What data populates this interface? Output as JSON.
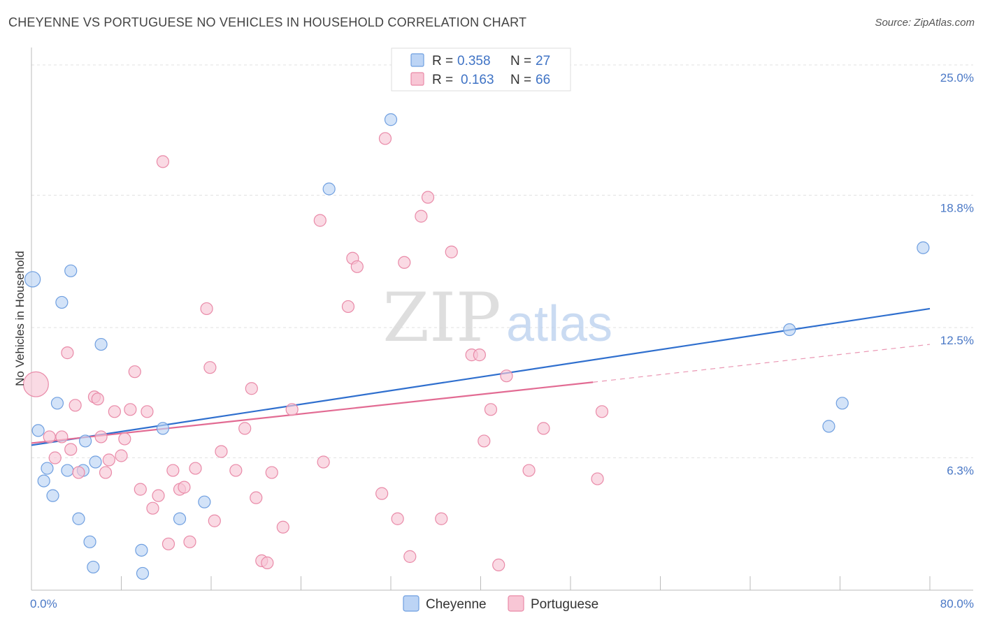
{
  "title": "CHEYENNE VS PORTUGUESE NO VEHICLES IN HOUSEHOLD CORRELATION CHART",
  "source": "Source: ZipAtlas.com",
  "watermark": {
    "zip": "ZIP",
    "atlas": "atlas"
  },
  "colors": {
    "cheyenne_fill": "#bcd4f5",
    "cheyenne_stroke": "#6f9fe0",
    "cheyenne_line": "#2f6fce",
    "portuguese_fill": "#f8c6d5",
    "portuguese_stroke": "#e98aa8",
    "portuguese_line": "#e26b93",
    "value_text": "#3f73c5"
  },
  "legend": {
    "r_label": "R =",
    "n_label": "N =",
    "rows": [
      {
        "series": "Cheyenne",
        "r": "0.358",
        "n": "27"
      },
      {
        "series": "Portuguese",
        "r": "0.163",
        "n": "66"
      }
    ]
  },
  "chart_data": {
    "type": "scatter",
    "xlabel": "",
    "ylabel": "No Vehicles in Household",
    "xlim": [
      0,
      80
    ],
    "ylim": [
      0,
      25.5
    ],
    "x_tick_labels": [
      {
        "value": 0,
        "label": "0.0%"
      },
      {
        "value": 80,
        "label": "80.0%"
      }
    ],
    "y_tick_labels": [
      {
        "value": 6.3,
        "label": "6.3%"
      },
      {
        "value": 12.5,
        "label": "12.5%"
      },
      {
        "value": 18.8,
        "label": "18.8%"
      },
      {
        "value": 25.0,
        "label": "25.0%"
      }
    ],
    "grid": true,
    "legend_position": "top-center",
    "series": [
      {
        "name": "Cheyenne",
        "points": [
          [
            0.1,
            14.8,
            1.3
          ],
          [
            0.6,
            7.6,
            1
          ],
          [
            1.1,
            5.2,
            1
          ],
          [
            1.4,
            5.8,
            1
          ],
          [
            1.9,
            4.5,
            1
          ],
          [
            2.3,
            8.9,
            1
          ],
          [
            2.7,
            13.7,
            1
          ],
          [
            3.2,
            5.7,
            1
          ],
          [
            3.5,
            15.2,
            1
          ],
          [
            4.2,
            3.4,
            1
          ],
          [
            4.6,
            5.7,
            1
          ],
          [
            4.8,
            7.1,
            1
          ],
          [
            5.2,
            2.3,
            1
          ],
          [
            5.5,
            1.1,
            1
          ],
          [
            5.7,
            6.1,
            1
          ],
          [
            6.2,
            11.7,
            1
          ],
          [
            9.8,
            1.9,
            1
          ],
          [
            9.9,
            0.8,
            1
          ],
          [
            11.7,
            7.7,
            1
          ],
          [
            13.2,
            3.4,
            1
          ],
          [
            15.4,
            4.2,
            1
          ],
          [
            26.5,
            19.1,
            1
          ],
          [
            32.0,
            22.4,
            1
          ],
          [
            67.5,
            12.4,
            1
          ],
          [
            71.0,
            7.8,
            1
          ],
          [
            72.2,
            8.9,
            1
          ],
          [
            79.4,
            16.3,
            1
          ]
        ],
        "trend": {
          "x": [
            0,
            80
          ],
          "y": [
            6.9,
            13.4
          ],
          "style": "solid"
        }
      },
      {
        "name": "Portuguese",
        "points": [
          [
            0.4,
            9.8,
            2.1
          ],
          [
            1.6,
            7.3,
            1
          ],
          [
            2.1,
            6.3,
            1
          ],
          [
            2.7,
            7.3,
            1
          ],
          [
            3.2,
            11.3,
            1
          ],
          [
            3.5,
            6.7,
            1
          ],
          [
            3.9,
            8.8,
            1
          ],
          [
            4.2,
            5.6,
            1
          ],
          [
            5.6,
            9.2,
            1
          ],
          [
            5.9,
            9.1,
            1
          ],
          [
            6.2,
            7.3,
            1
          ],
          [
            6.6,
            5.6,
            1
          ],
          [
            6.9,
            6.2,
            1
          ],
          [
            7.4,
            8.5,
            1
          ],
          [
            8.0,
            6.4,
            1
          ],
          [
            8.3,
            7.2,
            1
          ],
          [
            8.8,
            8.6,
            1
          ],
          [
            9.2,
            10.4,
            1
          ],
          [
            9.7,
            4.8,
            1
          ],
          [
            10.3,
            8.5,
            1
          ],
          [
            10.8,
            3.9,
            1
          ],
          [
            11.3,
            4.5,
            1
          ],
          [
            11.7,
            20.4,
            1
          ],
          [
            12.2,
            2.2,
            1
          ],
          [
            12.6,
            5.7,
            1
          ],
          [
            13.2,
            4.8,
            1
          ],
          [
            13.6,
            4.9,
            1
          ],
          [
            14.1,
            2.3,
            1
          ],
          [
            14.6,
            5.8,
            1
          ],
          [
            15.6,
            13.4,
            1
          ],
          [
            15.9,
            10.6,
            1
          ],
          [
            16.3,
            3.3,
            1
          ],
          [
            16.9,
            6.6,
            1
          ],
          [
            18.2,
            5.7,
            1
          ],
          [
            19.0,
            7.7,
            1
          ],
          [
            19.6,
            9.6,
            1
          ],
          [
            20.0,
            4.4,
            1
          ],
          [
            20.5,
            1.4,
            1
          ],
          [
            21.0,
            1.3,
            1
          ],
          [
            21.4,
            5.6,
            1
          ],
          [
            22.4,
            3.0,
            1
          ],
          [
            23.2,
            8.6,
            1
          ],
          [
            25.7,
            17.6,
            1
          ],
          [
            26.0,
            6.1,
            1
          ],
          [
            28.2,
            13.5,
            1
          ],
          [
            28.6,
            15.8,
            1
          ],
          [
            29.0,
            15.4,
            1
          ],
          [
            31.2,
            4.6,
            1
          ],
          [
            31.5,
            21.5,
            1
          ],
          [
            32.6,
            3.4,
            1
          ],
          [
            33.2,
            15.6,
            1
          ],
          [
            33.7,
            1.6,
            1
          ],
          [
            34.7,
            17.8,
            1
          ],
          [
            35.3,
            18.7,
            1
          ],
          [
            36.5,
            3.4,
            1
          ],
          [
            37.4,
            16.1,
            1
          ],
          [
            39.2,
            11.2,
            1
          ],
          [
            39.9,
            11.2,
            1
          ],
          [
            40.3,
            7.1,
            1
          ],
          [
            40.9,
            8.6,
            1
          ],
          [
            41.6,
            1.2,
            1
          ],
          [
            42.3,
            10.2,
            1
          ],
          [
            44.3,
            5.7,
            1
          ],
          [
            45.6,
            7.7,
            1
          ],
          [
            50.4,
            5.3,
            1
          ],
          [
            50.8,
            8.5,
            1
          ]
        ],
        "trend": {
          "x": [
            0,
            50
          ],
          "y": [
            7.0,
            9.9
          ],
          "style": "solid"
        },
        "trend_extension": {
          "x": [
            50,
            80
          ],
          "y": [
            9.9,
            11.7
          ],
          "style": "dashed"
        }
      }
    ]
  }
}
